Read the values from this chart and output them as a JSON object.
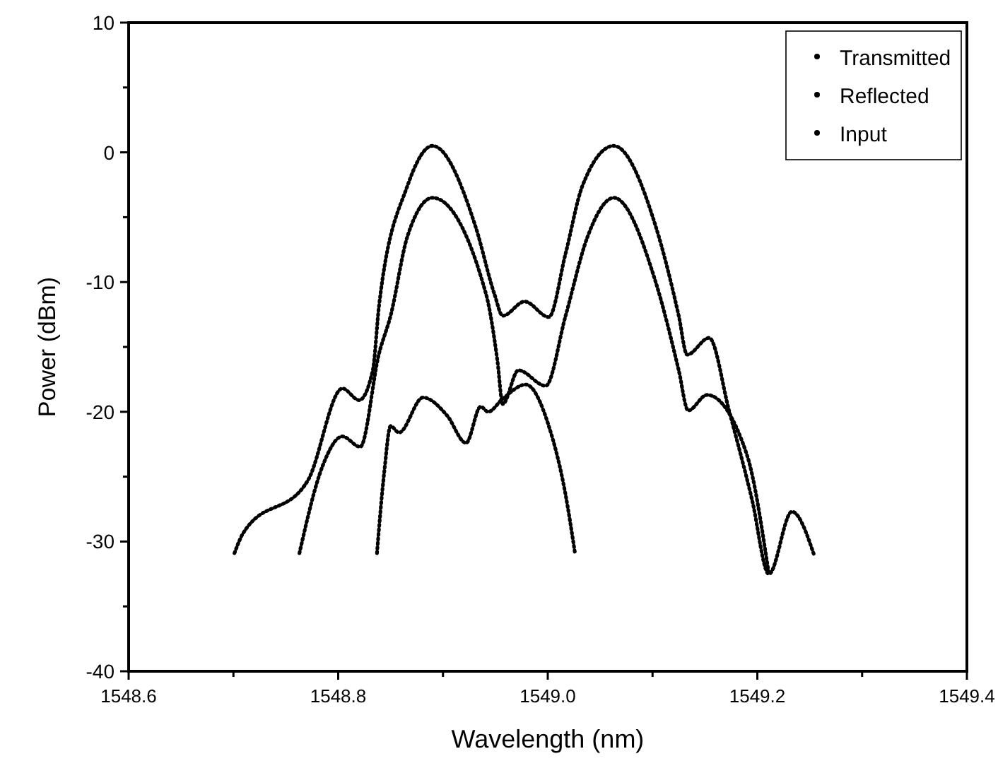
{
  "chart_data": {
    "type": "line",
    "xlabel": "Wavelength (nm)",
    "ylabel": "Power (dBm)",
    "xlim": [
      1548.6,
      1549.4
    ],
    "ylim": [
      -40,
      10
    ],
    "xticks": [
      1548.6,
      {
        "value": 1548.7,
        "label": null
      },
      1548.8,
      {
        "value": 1548.9,
        "label": null
      },
      {
        "value": 1549.0,
        "label": "1549.0"
      },
      {
        "value": 1549.1,
        "label": null
      },
      1549.2,
      {
        "value": 1549.3,
        "label": null
      },
      1549.4
    ],
    "yticks": [
      -40,
      {
        "value": -35,
        "label": null
      },
      -30,
      {
        "value": -25,
        "label": null
      },
      -20,
      {
        "value": -15,
        "label": null
      },
      -10,
      {
        "value": -5,
        "label": null
      },
      0,
      {
        "value": 5,
        "label": null
      },
      10
    ],
    "grid": false,
    "legend": "top right",
    "line_style": "dotted",
    "series": [
      {
        "name": "Transmitted",
        "color": "#000000",
        "x": [
          1548.837,
          1548.844,
          1548.85,
          1548.858,
          1548.881,
          1548.904,
          1548.922,
          1548.936,
          1548.943,
          1548.957,
          1548.979,
          1549.001,
          1549.017,
          1549.026
        ],
        "values": [
          -30.9,
          -24.6,
          -21.1,
          -21.6,
          -18.9,
          -20.3,
          -22.4,
          -19.6,
          -20,
          -19,
          -17.9,
          -21.1,
          -26.4,
          -30.9
        ]
      },
      {
        "name": "Reflected",
        "color": "#000000",
        "x": [
          1548.763,
          1548.785,
          1548.804,
          1548.821,
          1548.839,
          1548.85,
          1548.866,
          1548.89,
          1548.941,
          1548.952,
          1548.957,
          1548.972,
          1548.998,
          1549.017,
          1549.038,
          1549.063,
          1549.103,
          1549.125,
          1549.134,
          1549.152,
          1549.19,
          1549.211
        ],
        "values": [
          -30.9,
          -24.2,
          -21.9,
          -22.7,
          -15.5,
          -12.6,
          -6.5,
          -3.5,
          -10.9,
          -16.1,
          -19.4,
          -16.8,
          -18,
          -12.6,
          -6.5,
          -3.5,
          -10,
          -16.8,
          -19.9,
          -18.7,
          -23.3,
          -32.5
        ]
      },
      {
        "name": "Input",
        "color": "#000000",
        "x": [
          1548.701,
          1548.709,
          1548.771,
          1548.804,
          1548.82,
          1548.833,
          1548.839,
          1548.866,
          1548.89,
          1548.931,
          1548.949,
          1548.957,
          1548.978,
          1549.001,
          1549.017,
          1549.033,
          1549.063,
          1549.103,
          1549.125,
          1549.133,
          1549.154,
          1549.173,
          1549.195,
          1549.211,
          1549.233,
          1549.254
        ],
        "values": [
          -30.9,
          -29.4,
          -25.3,
          -18.2,
          -19.1,
          -16.8,
          -11.8,
          -2.6,
          0.5,
          -5.7,
          -10.9,
          -12.6,
          -11.5,
          -12.7,
          -7.8,
          -2.6,
          0.5,
          -5.7,
          -12.6,
          -15.6,
          -14.3,
          -19.9,
          -26.8,
          -32.5,
          -27.7,
          -31
        ]
      }
    ]
  }
}
